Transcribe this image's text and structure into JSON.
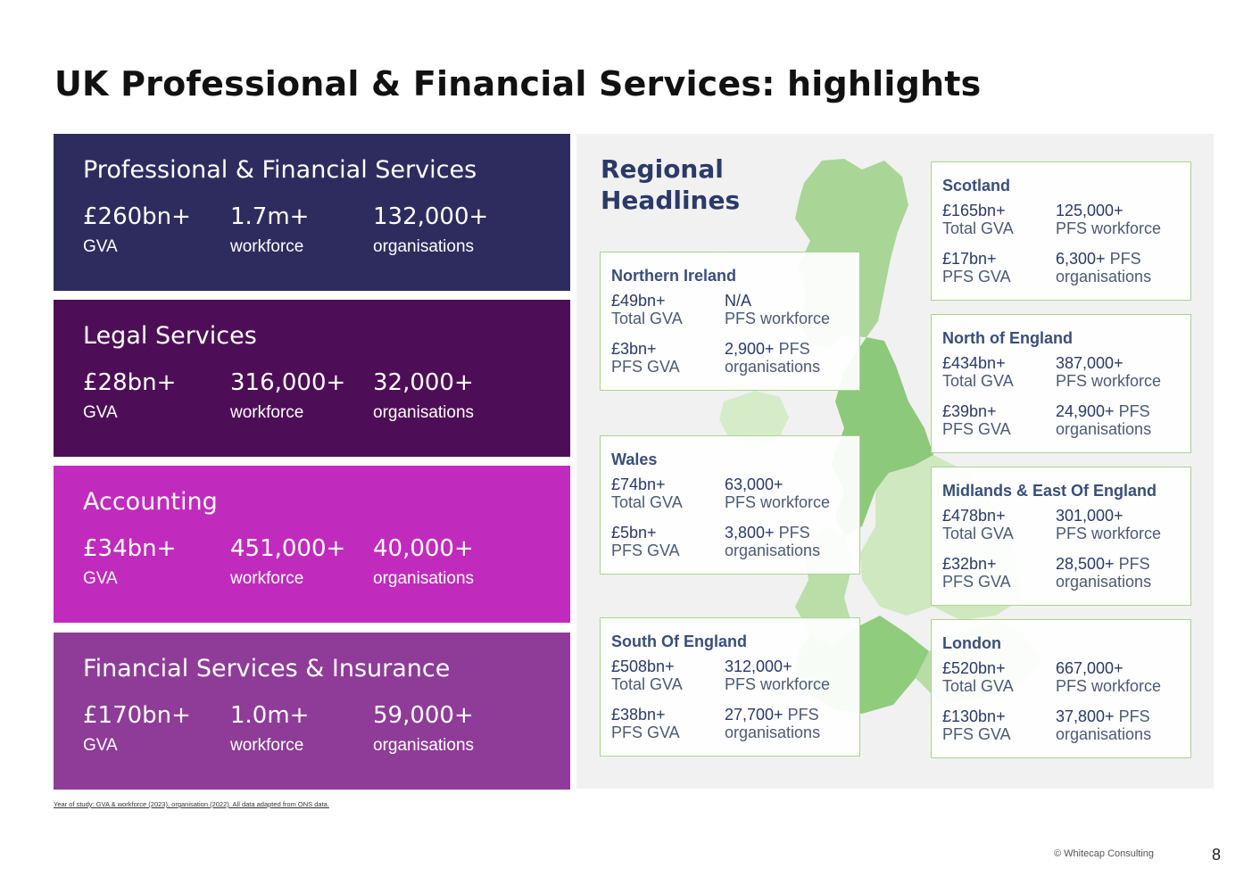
{
  "title": "UK Professional & Financial Services: highlights",
  "panels": [
    {
      "name": "Professional & Financial Services",
      "color": "#2e2c5f",
      "stats": [
        {
          "value": "£260bn+",
          "label": "GVA"
        },
        {
          "value": "1.7m+",
          "label": "workforce"
        },
        {
          "value": "132,000+",
          "label": "organisations"
        }
      ]
    },
    {
      "name": "Legal Services",
      "color": "#4e0e57",
      "stats": [
        {
          "value": "£28bn+",
          "label": "GVA"
        },
        {
          "value": "316,000+",
          "label": "workforce"
        },
        {
          "value": "32,000+",
          "label": "organisations"
        }
      ]
    },
    {
      "name": "Accounting",
      "color": "#c12bbd",
      "stats": [
        {
          "value": "£34bn+",
          "label": "GVA"
        },
        {
          "value": "451,000+",
          "label": "workforce"
        },
        {
          "value": "40,000+",
          "label": "organisations"
        }
      ]
    },
    {
      "name": "Financial Services & Insurance",
      "color": "#8e3c98",
      "stats": [
        {
          "value": "£170bn+",
          "label": "GVA"
        },
        {
          "value": "1.0m+",
          "label": "workforce"
        },
        {
          "value": "59,000+",
          "label": "organisations"
        }
      ]
    }
  ],
  "regional": {
    "title_line1": "Regional",
    "title_line2": "Headlines",
    "regions": [
      {
        "name": "Scotland",
        "gva": "£165bn+",
        "gva_label": "Total GVA",
        "workforce": "125,000+",
        "workforce_label": "PFS workforce",
        "pfs_gva": "£17bn+",
        "pfs_gva_label": "PFS GVA",
        "orgs": "6,300+",
        "orgs_label_a": "PFS",
        "orgs_label_b": "organisations"
      },
      {
        "name": "Northern Ireland",
        "gva": "£49bn+",
        "gva_label": "Total GVA",
        "workforce": "N/A",
        "workforce_label": "PFS workforce",
        "pfs_gva": "£3bn+",
        "pfs_gva_label": "PFS GVA",
        "orgs": "2,900+",
        "orgs_label_a": "PFS",
        "orgs_label_b": "organisations"
      },
      {
        "name": "North of England",
        "gva": "£434bn+",
        "gva_label": "Total GVA",
        "workforce": "387,000+",
        "workforce_label": "PFS workforce",
        "pfs_gva": "£39bn+",
        "pfs_gva_label": "PFS GVA",
        "orgs": "24,900+",
        "orgs_label_a": "PFS",
        "orgs_label_b": "organisations"
      },
      {
        "name": "Wales",
        "gva": "£74bn+",
        "gva_label": "Total GVA",
        "workforce": "63,000+",
        "workforce_label": "PFS workforce",
        "pfs_gva": "£5bn+",
        "pfs_gva_label": "PFS GVA",
        "orgs": "3,800+",
        "orgs_label_a": "PFS",
        "orgs_label_b": "organisations"
      },
      {
        "name": "Midlands & East Of England",
        "gva": "£478bn+",
        "gva_label": "Total GVA",
        "workforce": "301,000+",
        "workforce_label": "PFS workforce",
        "pfs_gva": "£32bn+",
        "pfs_gva_label": "PFS GVA",
        "orgs": "28,500+",
        "orgs_label_a": "PFS",
        "orgs_label_b": "organisations"
      },
      {
        "name": "South Of England",
        "gva": "£508bn+",
        "gva_label": "Total GVA",
        "workforce": "312,000+",
        "workforce_label": "PFS workforce",
        "pfs_gva": "£38bn+",
        "pfs_gva_label": "PFS GVA",
        "orgs": "27,700+",
        "orgs_label_a": "PFS",
        "orgs_label_b": "organisations"
      },
      {
        "name": "London",
        "gva": "£520bn+",
        "gva_label": "Total GVA",
        "workforce": "667,000+",
        "workforce_label": "PFS workforce",
        "pfs_gva": "£130bn+",
        "pfs_gva_label": "PFS GVA",
        "orgs": "37,800+",
        "orgs_label_a": "PFS",
        "orgs_label_b": "organisations"
      }
    ]
  },
  "footnote": "Year of study: GVA & workforce (2023), organisation (2022). All data adapted from ONS data.",
  "copyright": "© Whitecap Consulting",
  "page_number": "8"
}
